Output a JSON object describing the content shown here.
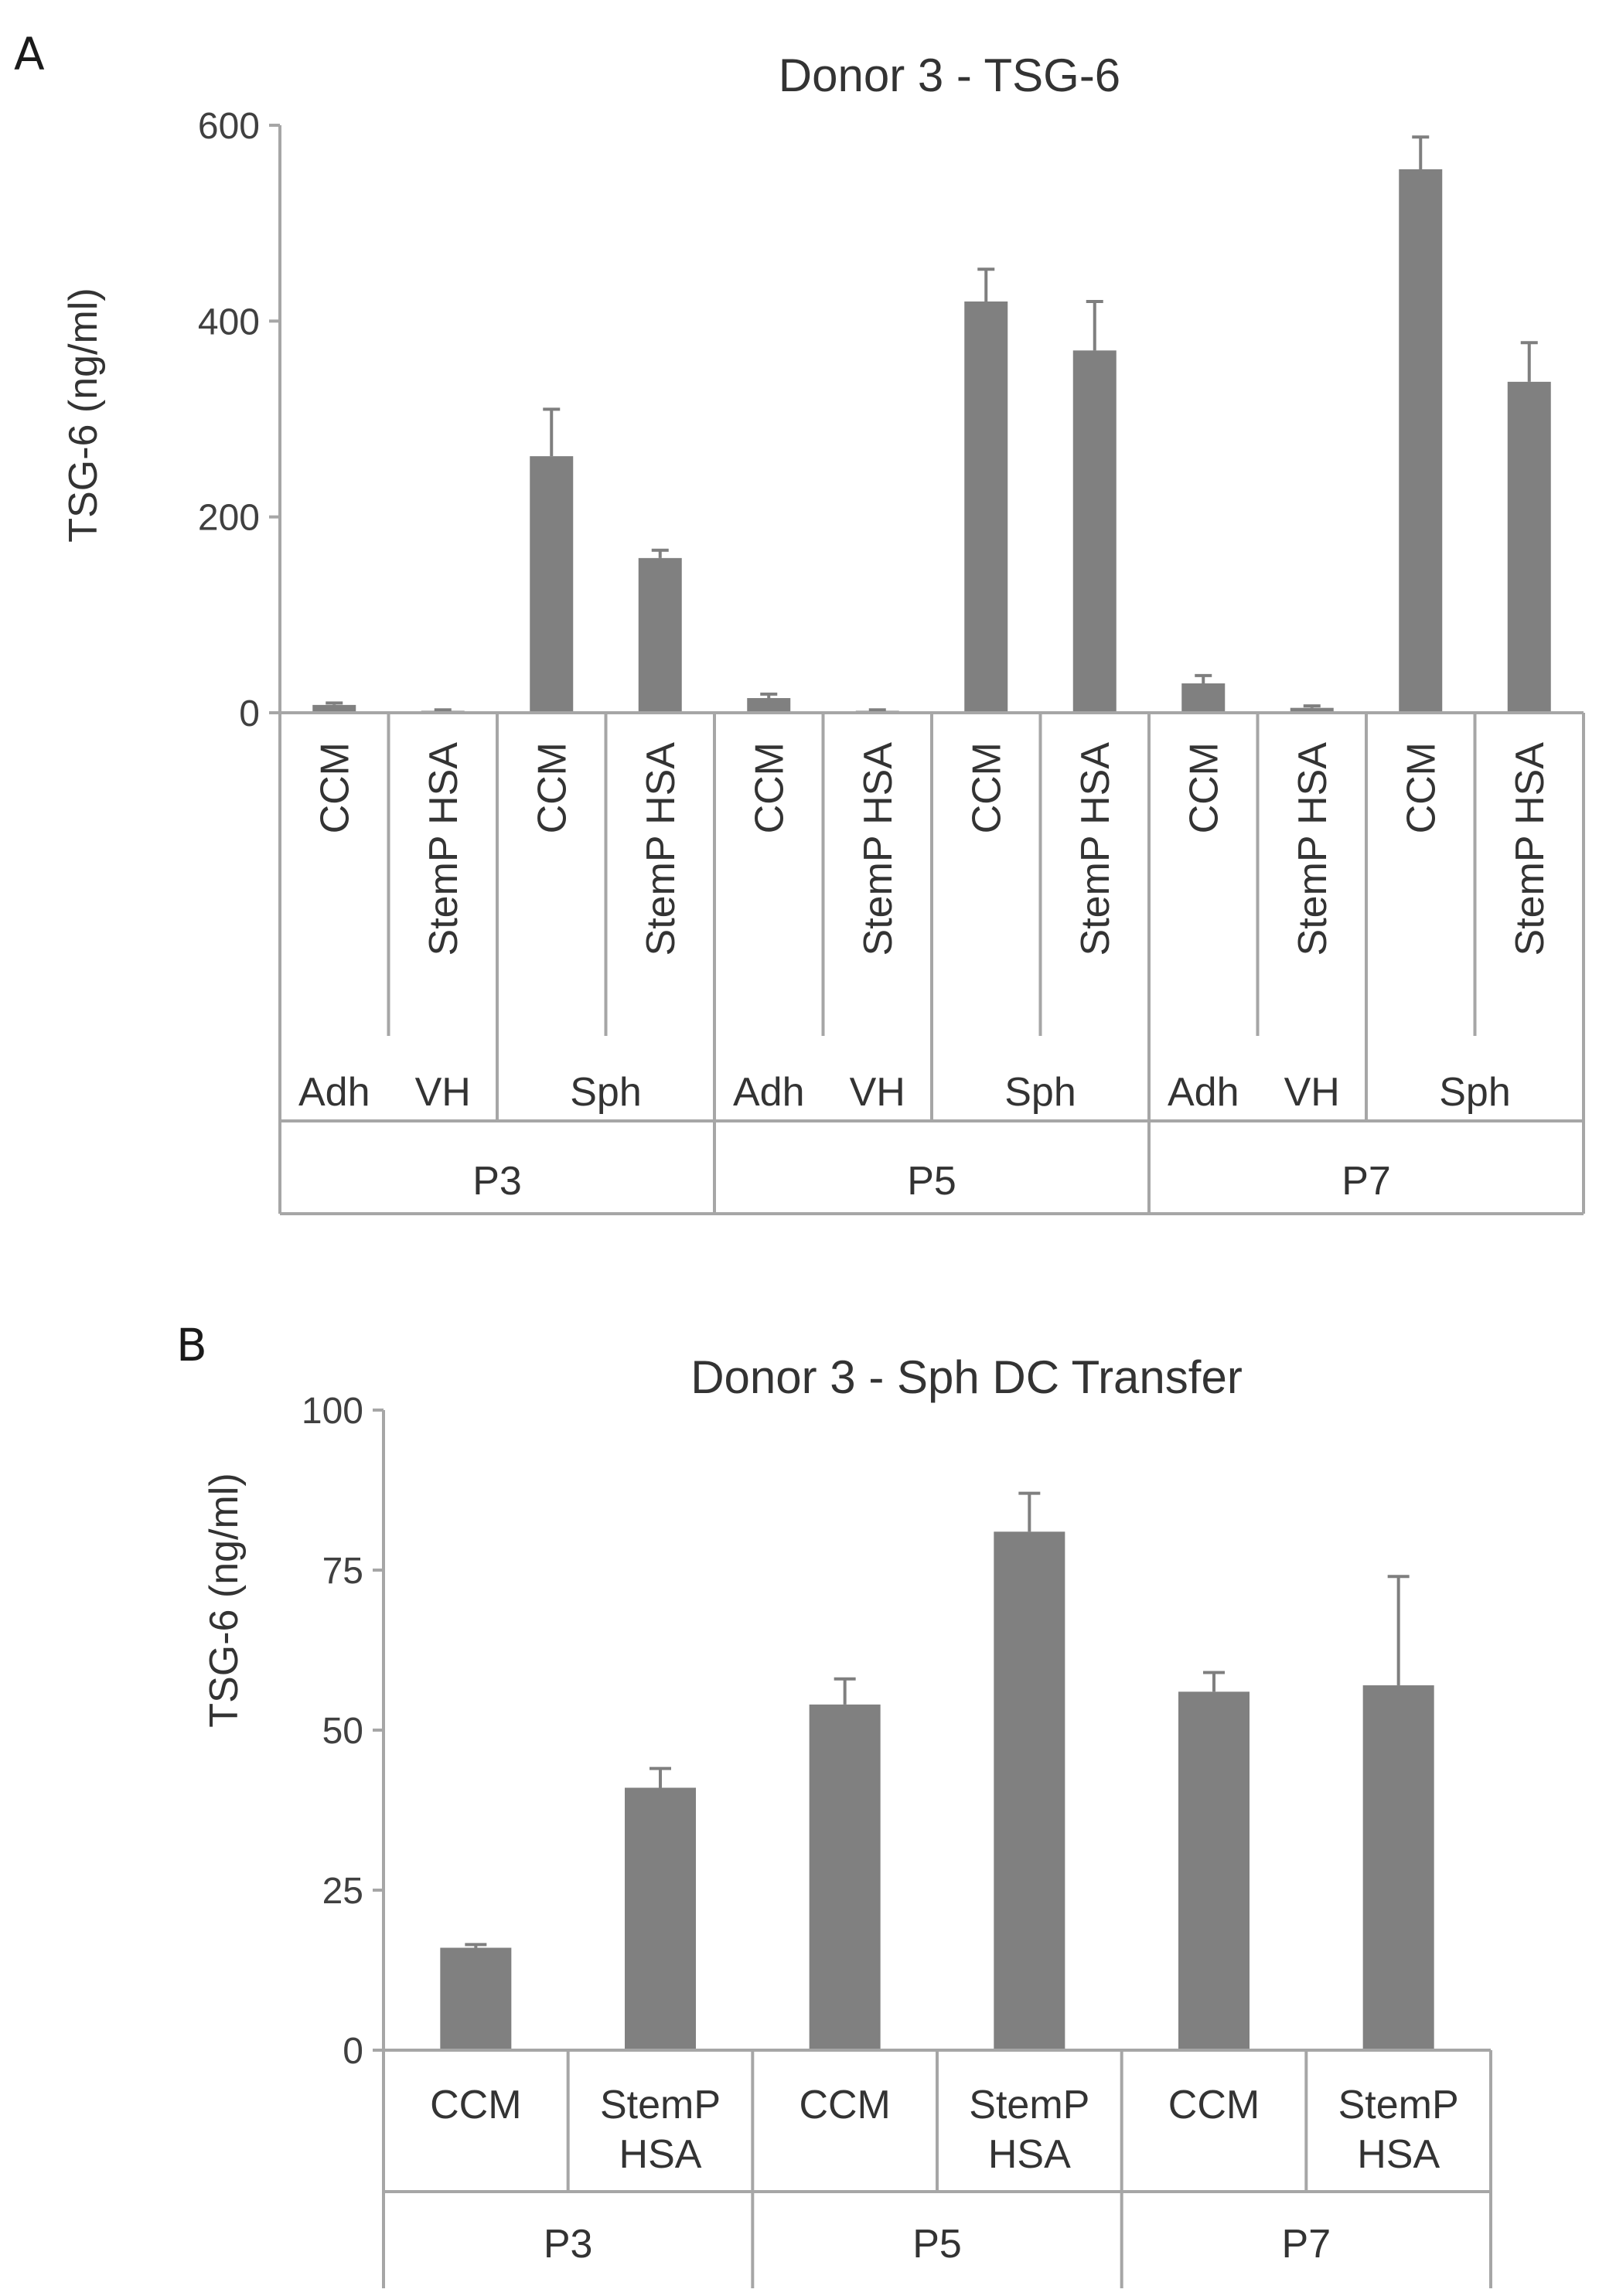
{
  "colors": {
    "bar": "#808080",
    "axis": "#a6a6a6"
  },
  "chart_data": [
    {
      "panel": "A",
      "type": "bar",
      "title": "Donor 3 - TSG-6",
      "ylabel": "TSG-6 (ng/ml)",
      "xlabel": "",
      "ylim": [
        0,
        600
      ],
      "yticks": [
        "0",
        "200",
        "400",
        "600"
      ],
      "categories": [
        "CCM",
        "StemP HSA",
        "CCM",
        "StemP HSA",
        "CCM",
        "StemP HSA",
        "CCM",
        "StemP HSA",
        "CCM",
        "StemP HSA",
        "CCM",
        "StemP HSA"
      ],
      "values": [
        8,
        2,
        262,
        158,
        15,
        2,
        420,
        370,
        30,
        5,
        555,
        338
      ],
      "errors": [
        2,
        1,
        48,
        8,
        4,
        1,
        33,
        50,
        8,
        2,
        33,
        40
      ],
      "groups_level2": [
        "Adh",
        "VH",
        "Sph",
        "Adh",
        "VH",
        "Sph",
        "Adh",
        "VH",
        "Sph"
      ],
      "groups_level3": [
        "P3",
        "P5",
        "P7"
      ]
    },
    {
      "panel": "B",
      "type": "bar",
      "title": "Donor 3 - Sph DC Transfer",
      "ylabel": "TSG-6 (ng/ml)",
      "xlabel": "",
      "ylim": [
        0,
        100
      ],
      "yticks": [
        "0",
        "25",
        "50",
        "75",
        "100"
      ],
      "categories": [
        [
          "CCM"
        ],
        [
          "StemP",
          "HSA"
        ],
        [
          "CCM"
        ],
        [
          "StemP",
          "HSA"
        ],
        [
          "CCM"
        ],
        [
          "StemP",
          "HSA"
        ]
      ],
      "values": [
        16,
        41,
        54,
        81,
        56,
        57
      ],
      "errors": [
        0.5,
        3,
        4,
        6,
        3,
        17
      ],
      "groups_level2": [
        "P3",
        "P5",
        "P7"
      ]
    }
  ]
}
